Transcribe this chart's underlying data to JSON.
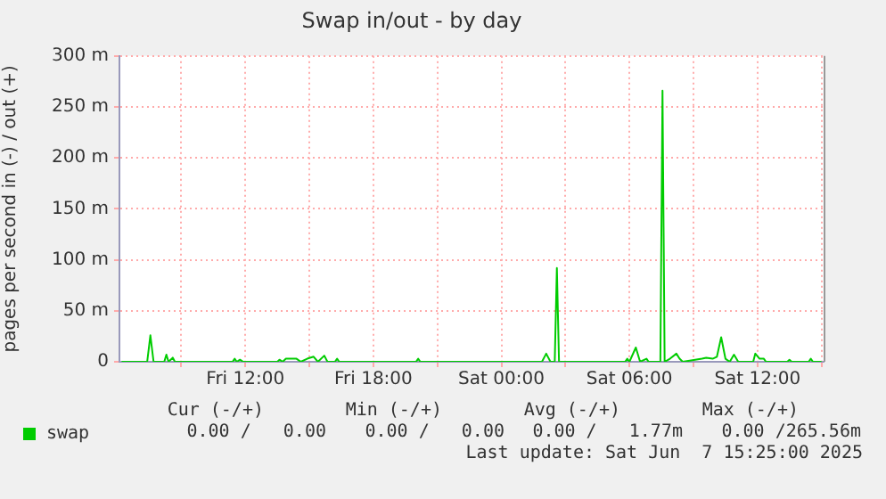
{
  "chart_data": {
    "type": "line",
    "title": "Swap in/out - by day",
    "ylabel": "pages per second in (-) / out (+)",
    "x": [
      "2025-06-06T06:12",
      "2025-06-06T07:24",
      "2025-06-06T07:33",
      "2025-06-06T07:42",
      "2025-06-06T08:12",
      "2025-06-06T08:18",
      "2025-06-06T08:24",
      "2025-06-06T08:36",
      "2025-06-06T08:42",
      "2025-06-06T11:24",
      "2025-06-06T11:30",
      "2025-06-06T11:36",
      "2025-06-06T11:45",
      "2025-06-06T11:54",
      "2025-06-06T13:30",
      "2025-06-06T13:36",
      "2025-06-06T13:45",
      "2025-06-06T13:54",
      "2025-06-06T14:09",
      "2025-06-06T14:24",
      "2025-06-06T14:36",
      "2025-06-06T14:54",
      "2025-06-06T15:12",
      "2025-06-06T15:24",
      "2025-06-06T15:42",
      "2025-06-06T15:51",
      "2025-06-06T16:12",
      "2025-06-06T16:18",
      "2025-06-06T16:24",
      "2025-06-06T20:00",
      "2025-06-06T20:06",
      "2025-06-06T20:12",
      "2025-06-07T01:54",
      "2025-06-07T02:06",
      "2025-06-07T02:18",
      "2025-06-07T02:30",
      "2025-06-07T02:36",
      "2025-06-07T02:42",
      "2025-06-07T05:48",
      "2025-06-07T05:54",
      "2025-06-07T06:00",
      "2025-06-07T06:18",
      "2025-06-07T06:30",
      "2025-06-07T06:48",
      "2025-06-07T06:54",
      "2025-06-07T07:27",
      "2025-06-07T07:33",
      "2025-06-07T07:39",
      "2025-06-07T07:54",
      "2025-06-07T08:12",
      "2025-06-07T08:21",
      "2025-06-07T08:30",
      "2025-06-07T09:24",
      "2025-06-07T09:36",
      "2025-06-07T09:54",
      "2025-06-07T10:06",
      "2025-06-07T10:18",
      "2025-06-07T10:30",
      "2025-06-07T10:42",
      "2025-06-07T10:54",
      "2025-06-07T11:06",
      "2025-06-07T11:48",
      "2025-06-07T11:54",
      "2025-06-07T12:06",
      "2025-06-07T12:18",
      "2025-06-07T12:24",
      "2025-06-07T13:24",
      "2025-06-07T13:30",
      "2025-06-07T13:36",
      "2025-06-07T14:24",
      "2025-06-07T14:30",
      "2025-06-07T14:36",
      "2025-06-07T15:00"
    ],
    "series": [
      {
        "name": "swap",
        "color": "#00cc00",
        "values": [
          0,
          0,
          26,
          0,
          0,
          7,
          0,
          4,
          0,
          0,
          3,
          0,
          2,
          0,
          0,
          2,
          0,
          3,
          3,
          3,
          0,
          3,
          5,
          0,
          6,
          0,
          0,
          3,
          0,
          0,
          3,
          0,
          0,
          8,
          0,
          0,
          92,
          0,
          0,
          3,
          0,
          14,
          0,
          3,
          0,
          0,
          266,
          0,
          3,
          8,
          3,
          0,
          3,
          4,
          3,
          5,
          24,
          3,
          0,
          7,
          0,
          0,
          8,
          3,
          3,
          0,
          0,
          2,
          0,
          0,
          3,
          0,
          0
        ]
      }
    ],
    "xlim": [
      "2025-06-06T06:06",
      "2025-06-07T15:06"
    ],
    "xticks": [
      {
        "value": "2025-06-06T09:00",
        "label": null
      },
      {
        "value": "2025-06-06T12:00",
        "label": "Fri 12:00"
      },
      {
        "value": "2025-06-06T15:00",
        "label": null
      },
      {
        "value": "2025-06-06T18:00",
        "label": "Fri 18:00"
      },
      {
        "value": "2025-06-06T21:00",
        "label": null
      },
      {
        "value": "2025-06-07T00:00",
        "label": "Sat 00:00"
      },
      {
        "value": "2025-06-07T03:00",
        "label": null
      },
      {
        "value": "2025-06-07T06:00",
        "label": "Sat 06:00"
      },
      {
        "value": "2025-06-07T09:00",
        "label": null
      },
      {
        "value": "2025-06-07T12:00",
        "label": "Sat 12:00"
      },
      {
        "value": "2025-06-07T15:00",
        "label": null
      }
    ],
    "ylim": [
      0,
      300
    ],
    "yticks": [
      {
        "value": 0,
        "label": "0"
      },
      {
        "value": 50,
        "label": "50 m"
      },
      {
        "value": 100,
        "label": "100 m"
      },
      {
        "value": 150,
        "label": "150 m"
      },
      {
        "value": 200,
        "label": "200 m"
      },
      {
        "value": 250,
        "label": "250 m"
      },
      {
        "value": 300,
        "label": "300 m"
      }
    ],
    "grid": true,
    "legend": "bottom",
    "marker": "none",
    "line_style": "solid",
    "annotations": [
      "Cur (-/+)",
      "Min (-/+)",
      "Avg (-/+)",
      "Max (-/+)",
      "0.00 /   0.00",
      "0.00 /   0.00",
      "0.00 /   1.77m",
      "0.00 /265.56m",
      "Last update: Sat Jun  7 15:25:00 2025"
    ]
  }
}
